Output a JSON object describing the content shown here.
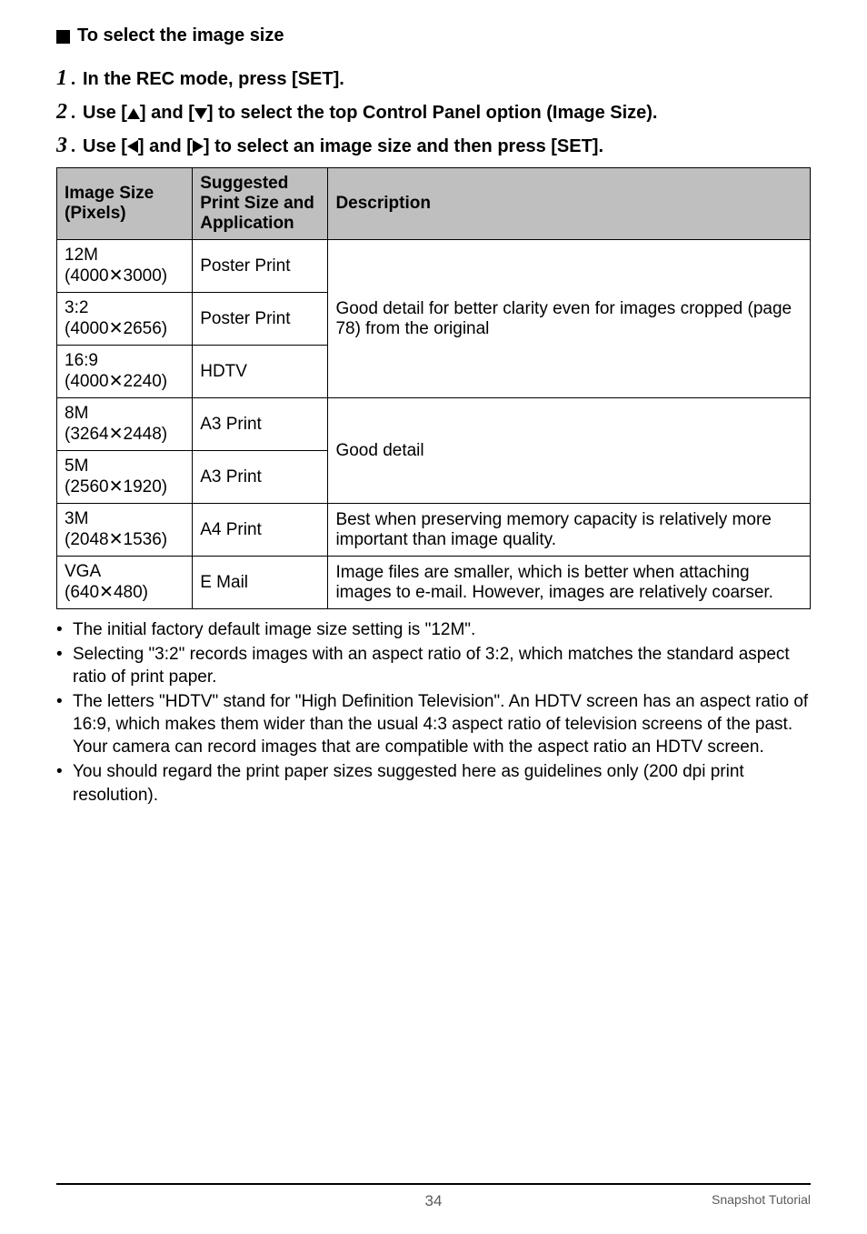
{
  "heading": "To select the image size",
  "steps": {
    "s1": "In the REC mode, press [SET].",
    "s2_a": "Use [",
    "s2_b": "] and [",
    "s2_c": "] to select the top Control Panel option (Image Size).",
    "s3_a": "Use [",
    "s3_b": "] and [",
    "s3_c": "] to select an image size and then press [SET]."
  },
  "table": {
    "headers": {
      "c0": "Image Size (Pixels)",
      "c1": "Suggested Print Size and Application",
      "c2": "Description"
    },
    "rows": {
      "r0c0a": "12M",
      "r0c0b": "(4000✕3000)",
      "r0c1": "Poster Print",
      "r1c0a": "3:2",
      "r1c0b": "(4000✕2656)",
      "r1c1": "Poster Print",
      "r2c0a": "16:9",
      "r2c0b": "(4000✕2240)",
      "r2c1": "HDTV",
      "r3c0a": "8M",
      "r3c0b": "(3264✕2448)",
      "r3c1": "A3 Print",
      "r4c0a": "5M",
      "r4c0b": "(2560✕1920)",
      "r4c1": "A3 Print",
      "r5c0a": "3M",
      "r5c0b": "(2048✕1536)",
      "r5c1": "A4 Print",
      "r6c0a": "VGA",
      "r6c0b": "(640✕480)",
      "r6c1": "E Mail"
    },
    "desc": {
      "d0": "Good detail for better clarity even for images cropped (page 78) from the original",
      "d1": "Good detail",
      "d2": "Best when preserving memory capacity is relatively more important than image quality.",
      "d3": "Image files are smaller, which is better when attaching images to e-mail. However, images are relatively coarser."
    }
  },
  "bullets": {
    "b0": "The initial factory default image size setting is \"12M\".",
    "b1": "Selecting \"3:2\" records images with an aspect ratio of 3:2, which matches the standard aspect ratio of print paper.",
    "b2": "The letters \"HDTV\" stand for \"High Definition Television\". An HDTV screen has an aspect ratio of 16:9, which makes them wider than the usual 4:3 aspect ratio of television screens of the past. Your camera can record images that are compatible with the aspect ratio an HDTV screen.",
    "b3": "You should regard the print paper sizes suggested here as guidelines only (200 dpi print resolution)."
  },
  "footer": {
    "page": "34",
    "label": "Snapshot Tutorial"
  }
}
